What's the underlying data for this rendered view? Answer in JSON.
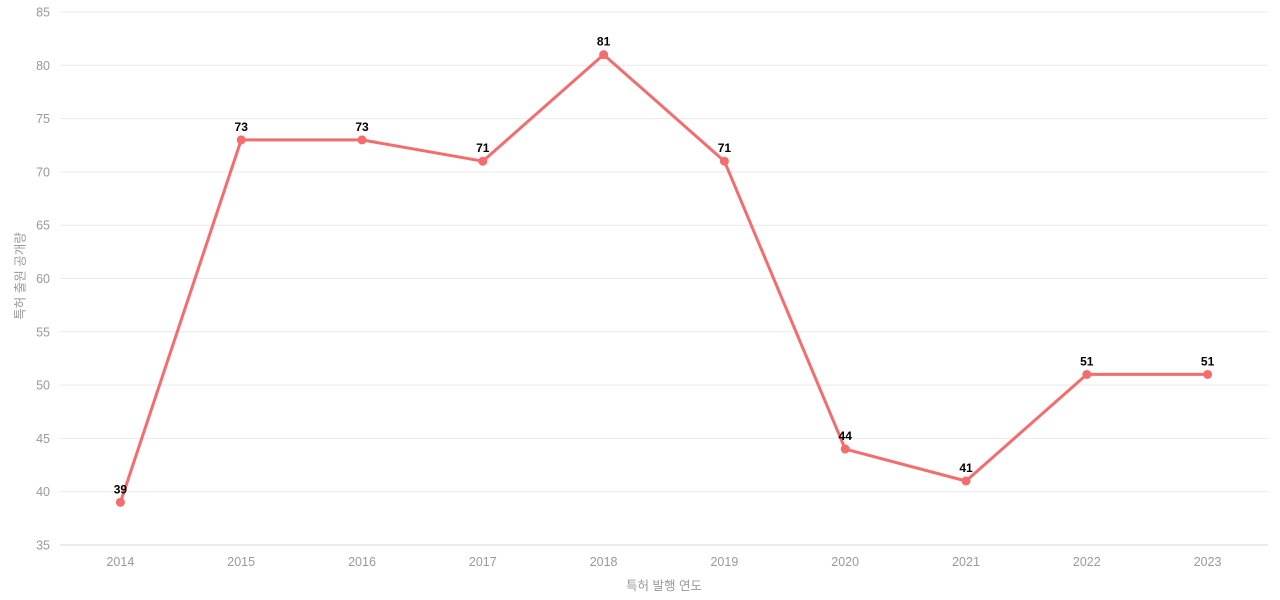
{
  "chart_data": {
    "type": "line",
    "categories": [
      "2014",
      "2015",
      "2016",
      "2017",
      "2018",
      "2019",
      "2020",
      "2021",
      "2022",
      "2023"
    ],
    "values": [
      39,
      73,
      73,
      71,
      81,
      71,
      44,
      41,
      51,
      51
    ],
    "title": "",
    "xlabel": "특허 발행 연도",
    "ylabel": "특허 출원 공개량",
    "ylim": [
      35,
      85
    ],
    "ytick_step": 5,
    "yticks": [
      35,
      40,
      45,
      50,
      55,
      60,
      65,
      70,
      75,
      80,
      85
    ],
    "grid": true,
    "legend_position": "none",
    "data_labels_shown": true,
    "colors": {
      "line": "#f56c6c",
      "marker": "#f56c6c",
      "gridline": "#e9e9e9",
      "axis_baseline": "#ccd6e6",
      "tick_label": "#999999",
      "axis_title": "#999999",
      "data_label": "#000000",
      "background": "#ffffff"
    }
  }
}
